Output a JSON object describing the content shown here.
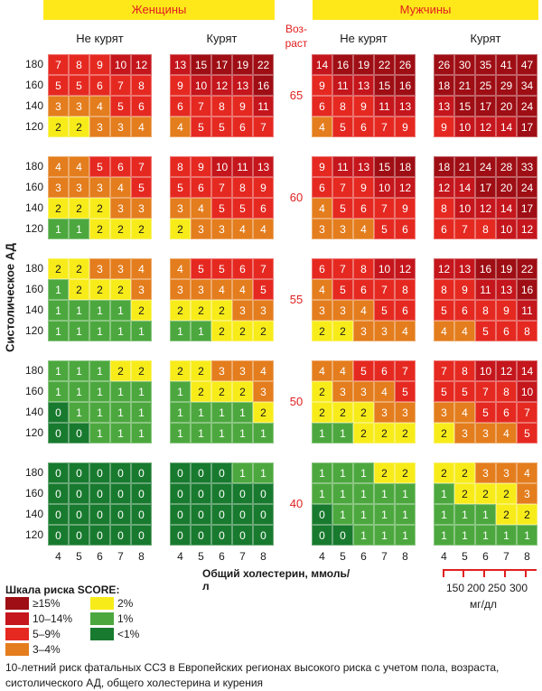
{
  "colors": {
    "ge15": "#9e0e14",
    "r10_14": "#c4161c",
    "r5_9": "#e52921",
    "r3_4": "#e47d1d",
    "r2": "#f7ec1a",
    "r1": "#4ca83e",
    "lt1": "#187a2e",
    "accent_banner": "#ffe81a",
    "accent_red": "#e02020"
  },
  "header": {
    "women": "Женщины",
    "men": "Мужчины",
    "nonsmoke": "Не курят",
    "smoke": "Курят",
    "age_title_1": "Воз-",
    "age_title_2": "раст"
  },
  "axis": {
    "ylabel": "Систолическое АД",
    "xlabel": "Общий холестерин, ммоль/л",
    "bp_ticks": [
      "180",
      "160",
      "140",
      "120"
    ],
    "chol_ticks": [
      "4",
      "5",
      "6",
      "7",
      "8"
    ],
    "mg_ticks": [
      "150",
      "200",
      "250",
      "300"
    ],
    "mg_unit": "мг/дл"
  },
  "legend": {
    "title": "Шкала риска SCORE:",
    "items": [
      {
        "label": "≥15%",
        "color_key": "ge15"
      },
      {
        "label": "10–14%",
        "color_key": "r10_14"
      },
      {
        "label": "5–9%",
        "color_key": "r5_9"
      },
      {
        "label": "3–4%",
        "color_key": "r3_4"
      },
      {
        "label": "2%",
        "color_key": "r2"
      },
      {
        "label": "1%",
        "color_key": "r1"
      },
      {
        "label": "<1%",
        "color_key": "lt1"
      }
    ]
  },
  "caption": "10-летний риск фатальных ССЗ в Европейских регионах высокого риска с учетом пола, возраста, систолического АД, общего холестерина и курения",
  "chart_data": {
    "type": "heatmap",
    "title": "",
    "xlabel": "Общий холестерин, ммоль/л",
    "ylabel": "Систолическое АД",
    "x": [
      4,
      5,
      6,
      7,
      8
    ],
    "y": [
      180,
      160,
      140,
      120
    ],
    "groups": [
      "Женщины / Не курят",
      "Женщины / Курят",
      "Мужчины / Не курят",
      "Мужчины / Курят"
    ],
    "ages": [
      {
        "age": "65",
        "grids": [
          [
            [
              7,
              8,
              9,
              10,
              12
            ],
            [
              5,
              5,
              6,
              7,
              8
            ],
            [
              3,
              3,
              4,
              5,
              6
            ],
            [
              2,
              2,
              3,
              3,
              4
            ]
          ],
          [
            [
              13,
              15,
              17,
              19,
              22
            ],
            [
              9,
              10,
              12,
              13,
              16
            ],
            [
              6,
              7,
              8,
              9,
              11
            ],
            [
              4,
              5,
              5,
              6,
              7
            ]
          ],
          [
            [
              14,
              16,
              19,
              22,
              26
            ],
            [
              9,
              11,
              13,
              15,
              16
            ],
            [
              6,
              8,
              9,
              11,
              13
            ],
            [
              4,
              5,
              6,
              7,
              9
            ]
          ],
          [
            [
              26,
              30,
              35,
              41,
              47
            ],
            [
              18,
              21,
              25,
              29,
              34
            ],
            [
              13,
              15,
              17,
              20,
              24
            ],
            [
              9,
              10,
              12,
              14,
              17
            ]
          ]
        ]
      },
      {
        "age": "60",
        "grids": [
          [
            [
              4,
              4,
              5,
              6,
              7
            ],
            [
              3,
              3,
              3,
              4,
              5
            ],
            [
              2,
              2,
              2,
              3,
              3
            ],
            [
              1,
              1,
              2,
              2,
              2
            ]
          ],
          [
            [
              8,
              9,
              10,
              11,
              13
            ],
            [
              5,
              6,
              7,
              8,
              9
            ],
            [
              3,
              4,
              5,
              5,
              6
            ],
            [
              2,
              3,
              3,
              4,
              4
            ]
          ],
          [
            [
              9,
              11,
              13,
              15,
              18
            ],
            [
              6,
              7,
              9,
              10,
              12
            ],
            [
              4,
              5,
              6,
              7,
              9
            ],
            [
              3,
              3,
              4,
              5,
              6
            ]
          ],
          [
            [
              18,
              21,
              24,
              28,
              33
            ],
            [
              12,
              14,
              17,
              20,
              24
            ],
            [
              8,
              10,
              12,
              14,
              17
            ],
            [
              6,
              7,
              8,
              10,
              12
            ]
          ]
        ]
      },
      {
        "age": "55",
        "grids": [
          [
            [
              2,
              2,
              3,
              3,
              4
            ],
            [
              1,
              2,
              2,
              2,
              3
            ],
            [
              1,
              1,
              1,
              1,
              2
            ],
            [
              1,
              1,
              1,
              1,
              1
            ]
          ],
          [
            [
              4,
              5,
              5,
              6,
              7
            ],
            [
              3,
              3,
              4,
              4,
              5
            ],
            [
              2,
              2,
              2,
              3,
              3
            ],
            [
              1,
              1,
              2,
              2,
              2
            ]
          ],
          [
            [
              6,
              7,
              8,
              10,
              12
            ],
            [
              4,
              5,
              6,
              7,
              8
            ],
            [
              3,
              3,
              4,
              5,
              6
            ],
            [
              2,
              2,
              3,
              3,
              4
            ]
          ],
          [
            [
              12,
              13,
              16,
              19,
              22
            ],
            [
              8,
              9,
              11,
              13,
              16
            ],
            [
              5,
              6,
              8,
              9,
              11
            ],
            [
              4,
              4,
              5,
              6,
              8
            ]
          ]
        ]
      },
      {
        "age": "50",
        "grids": [
          [
            [
              1,
              1,
              1,
              2,
              2
            ],
            [
              1,
              1,
              1,
              1,
              1
            ],
            [
              0,
              1,
              1,
              1,
              1
            ],
            [
              0,
              0,
              1,
              1,
              1
            ]
          ],
          [
            [
              2,
              2,
              3,
              3,
              4
            ],
            [
              1,
              2,
              2,
              2,
              3
            ],
            [
              1,
              1,
              1,
              1,
              2
            ],
            [
              1,
              1,
              1,
              1,
              1
            ]
          ],
          [
            [
              4,
              4,
              5,
              6,
              7
            ],
            [
              2,
              3,
              3,
              4,
              5
            ],
            [
              2,
              2,
              2,
              3,
              3
            ],
            [
              1,
              1,
              2,
              2,
              2
            ]
          ],
          [
            [
              7,
              8,
              10,
              12,
              14
            ],
            [
              5,
              5,
              7,
              8,
              10
            ],
            [
              3,
              4,
              5,
              6,
              7
            ],
            [
              2,
              3,
              3,
              4,
              5
            ]
          ]
        ]
      },
      {
        "age": "40",
        "grids": [
          [
            [
              0,
              0,
              0,
              0,
              0
            ],
            [
              0,
              0,
              0,
              0,
              0
            ],
            [
              0,
              0,
              0,
              0,
              0
            ],
            [
              0,
              0,
              0,
              0,
              0
            ]
          ],
          [
            [
              0,
              0,
              0,
              1,
              1
            ],
            [
              0,
              0,
              0,
              0,
              0
            ],
            [
              0,
              0,
              0,
              0,
              0
            ],
            [
              0,
              0,
              0,
              0,
              0
            ]
          ],
          [
            [
              1,
              1,
              1,
              2,
              2
            ],
            [
              1,
              1,
              1,
              1,
              1
            ],
            [
              0,
              1,
              1,
              1,
              1
            ],
            [
              0,
              0,
              1,
              1,
              1
            ]
          ],
          [
            [
              2,
              2,
              3,
              3,
              4
            ],
            [
              1,
              2,
              2,
              2,
              3
            ],
            [
              1,
              1,
              1,
              2,
              2
            ],
            [
              1,
              1,
              1,
              1,
              1
            ]
          ]
        ]
      }
    ]
  }
}
